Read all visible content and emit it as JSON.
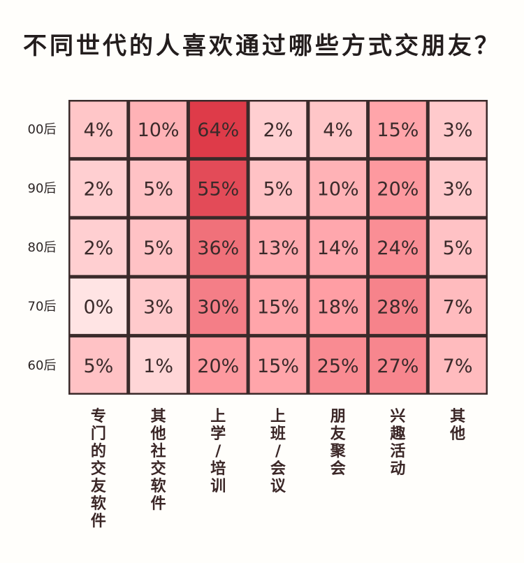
{
  "chart_data": {
    "type": "heatmap",
    "title": "不同世代的人喜欢通过哪些方式交朋友？",
    "rows": [
      "00后",
      "90后",
      "80后",
      "70后",
      "60后"
    ],
    "columns": [
      "专门的交友软件",
      "其他社交软件",
      "上学/培训",
      "上班/会议",
      "朋友聚会",
      "兴趣活动",
      "其他"
    ],
    "values": [
      [
        4,
        10,
        64,
        2,
        4,
        15,
        3
      ],
      [
        2,
        5,
        55,
        5,
        10,
        20,
        3
      ],
      [
        2,
        5,
        36,
        13,
        14,
        24,
        5
      ],
      [
        0,
        3,
        30,
        15,
        18,
        28,
        7
      ],
      [
        5,
        1,
        20,
        15,
        25,
        27,
        7
      ]
    ],
    "unit": "%",
    "colors": {
      "low": "#ffe4e4",
      "mid": "#ff9ea4",
      "high": "#de3b49",
      "grid": "#3a2a2a"
    }
  }
}
